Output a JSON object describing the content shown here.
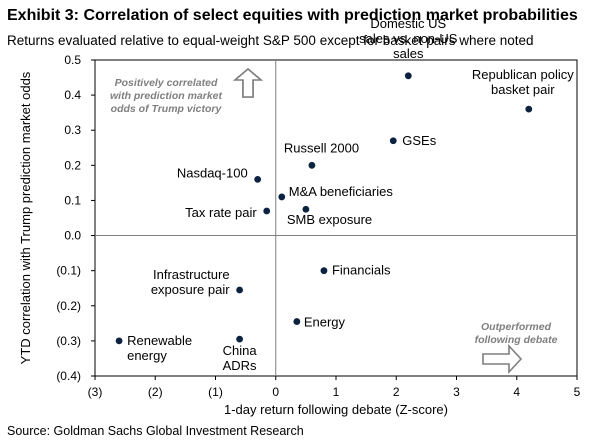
{
  "header": {
    "title": "Exhibit 3: Correlation of select equities with prediction market probabilities",
    "subtitle": "Returns evaluated relative to equal-weight S&P 500 except for basket pairs where noted"
  },
  "footer": {
    "source": "Source: Goldman Sachs Global Investment Research"
  },
  "chart_data": {
    "type": "scatter",
    "xlabel": "1-day return following debate (Z-score)",
    "ylabel": "YTD correlation with Trump prediction market odds",
    "xlim": [
      -3,
      5
    ],
    "ylim": [
      -0.4,
      0.5
    ],
    "x_ticks": [
      -3,
      -2,
      -1,
      0,
      1,
      2,
      3,
      4,
      5
    ],
    "x_tick_labels": [
      "(3)",
      "(2)",
      "(1)",
      "0",
      "1",
      "2",
      "3",
      "4",
      "5"
    ],
    "y_ticks": [
      0.5,
      0.4,
      0.3,
      0.2,
      0.1,
      0.0,
      -0.1,
      -0.2,
      -0.3,
      -0.4
    ],
    "y_tick_labels": [
      "0.5",
      "0.4",
      "0.3",
      "0.2",
      "0.1",
      "0.0",
      "(0.1)",
      "(0.2)",
      "(0.3)",
      "(0.4)"
    ],
    "grid": false,
    "points": [
      {
        "label": "Domestic US\nsales vs. non-US\nsales",
        "x": 2.2,
        "y": 0.455
      },
      {
        "label": "Republican policy\nbasket pair",
        "x": 4.2,
        "y": 0.36
      },
      {
        "label": "GSEs",
        "x": 1.95,
        "y": 0.27
      },
      {
        "label": "Russell 2000",
        "x": 0.6,
        "y": 0.2
      },
      {
        "label": "Nasdaq-100",
        "x": -0.3,
        "y": 0.16
      },
      {
        "label": "M&A beneficiaries",
        "x": 0.1,
        "y": 0.11
      },
      {
        "label": "Tax rate pair",
        "x": -0.15,
        "y": 0.07
      },
      {
        "label": "SMB exposure",
        "x": 0.5,
        "y": 0.075
      },
      {
        "label": "Financials",
        "x": 0.8,
        "y": -0.1
      },
      {
        "label": "Infrastructure\nexposure pair",
        "x": -0.6,
        "y": -0.155
      },
      {
        "label": "Energy",
        "x": 0.35,
        "y": -0.245
      },
      {
        "label": "Renewable\nenergy",
        "x": -2.6,
        "y": -0.3
      },
      {
        "label": "China\nADRs",
        "x": -0.6,
        "y": -0.295
      }
    ],
    "annotations": [
      {
        "text": "Positively correlated\nwith prediction market\nodds of Trump victory",
        "arrow": "up"
      },
      {
        "text": "Outperformed\nfollowing debate",
        "arrow": "right"
      }
    ],
    "marker_color": "#0d2240",
    "axis_color": "#000000",
    "quadrant_line_color": "#808080",
    "annotation_color": "#7f7f7f"
  }
}
